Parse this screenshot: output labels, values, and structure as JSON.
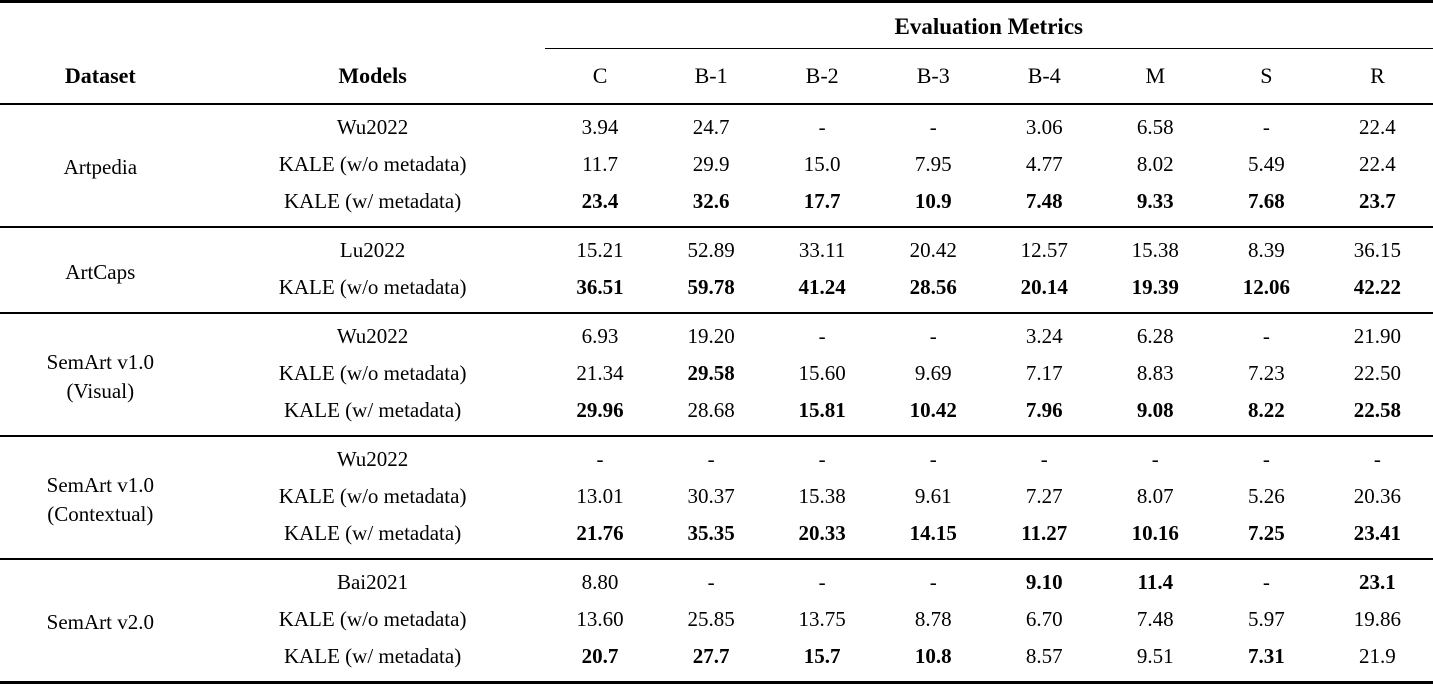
{
  "table": {
    "metrics_group_label": "Evaluation Metrics",
    "columns": {
      "dataset": "Dataset",
      "models": "Models",
      "metrics": [
        "C",
        "B-1",
        "B-2",
        "B-3",
        "B-4",
        "M",
        "S",
        "R"
      ]
    },
    "sections": [
      {
        "dataset": "Artpedia",
        "rows": [
          {
            "model": "Wu2022",
            "values": [
              "3.94",
              "24.7",
              "-",
              "-",
              "3.06",
              "6.58",
              "-",
              "22.4"
            ],
            "bold": [
              false,
              false,
              false,
              false,
              false,
              false,
              false,
              false
            ]
          },
          {
            "model": "KALE (w/o metadata)",
            "values": [
              "11.7",
              "29.9",
              "15.0",
              "7.95",
              "4.77",
              "8.02",
              "5.49",
              "22.4"
            ],
            "bold": [
              false,
              false,
              false,
              false,
              false,
              false,
              false,
              false
            ]
          },
          {
            "model": "KALE (w/ metadata)",
            "values": [
              "23.4",
              "32.6",
              "17.7",
              "10.9",
              "7.48",
              "9.33",
              "7.68",
              "23.7"
            ],
            "bold": [
              true,
              true,
              true,
              true,
              true,
              true,
              true,
              true
            ]
          }
        ]
      },
      {
        "dataset": "ArtCaps",
        "rows": [
          {
            "model": "Lu2022",
            "values": [
              "15.21",
              "52.89",
              "33.11",
              "20.42",
              "12.57",
              "15.38",
              "8.39",
              "36.15"
            ],
            "bold": [
              false,
              false,
              false,
              false,
              false,
              false,
              false,
              false
            ]
          },
          {
            "model": "KALE (w/o metadata)",
            "values": [
              "36.51",
              "59.78",
              "41.24",
              "28.56",
              "20.14",
              "19.39",
              "12.06",
              "42.22"
            ],
            "bold": [
              true,
              true,
              true,
              true,
              true,
              true,
              true,
              true
            ]
          }
        ]
      },
      {
        "dataset": "SemArt v1.0\n(Visual)",
        "rows": [
          {
            "model": "Wu2022",
            "values": [
              "6.93",
              "19.20",
              "-",
              "-",
              "3.24",
              "6.28",
              "-",
              "21.90"
            ],
            "bold": [
              false,
              false,
              false,
              false,
              false,
              false,
              false,
              false
            ]
          },
          {
            "model": "KALE (w/o metadata)",
            "values": [
              "21.34",
              "29.58",
              "15.60",
              "9.69",
              "7.17",
              "8.83",
              "7.23",
              "22.50"
            ],
            "bold": [
              false,
              true,
              false,
              false,
              false,
              false,
              false,
              false
            ]
          },
          {
            "model": "KALE (w/ metadata)",
            "values": [
              "29.96",
              "28.68",
              "15.81",
              "10.42",
              "7.96",
              "9.08",
              "8.22",
              "22.58"
            ],
            "bold": [
              true,
              false,
              true,
              true,
              true,
              true,
              true,
              true
            ]
          }
        ]
      },
      {
        "dataset": "SemArt v1.0\n(Contextual)",
        "rows": [
          {
            "model": "Wu2022",
            "values": [
              "-",
              "-",
              "-",
              "-",
              "-",
              "-",
              "-",
              "-"
            ],
            "bold": [
              false,
              false,
              false,
              false,
              false,
              false,
              false,
              false
            ]
          },
          {
            "model": "KALE (w/o metadata)",
            "values": [
              "13.01",
              "30.37",
              "15.38",
              "9.61",
              "7.27",
              "8.07",
              "5.26",
              "20.36"
            ],
            "bold": [
              false,
              false,
              false,
              false,
              false,
              false,
              false,
              false
            ]
          },
          {
            "model": "KALE (w/ metadata)",
            "values": [
              "21.76",
              "35.35",
              "20.33",
              "14.15",
              "11.27",
              "10.16",
              "7.25",
              "23.41"
            ],
            "bold": [
              true,
              true,
              true,
              true,
              true,
              true,
              true,
              true
            ]
          }
        ]
      },
      {
        "dataset": "SemArt v2.0",
        "rows": [
          {
            "model": "Bai2021",
            "values": [
              "8.80",
              "-",
              "-",
              "-",
              "9.10",
              "11.4",
              "-",
              "23.1"
            ],
            "bold": [
              false,
              false,
              false,
              false,
              true,
              true,
              false,
              true
            ]
          },
          {
            "model": "KALE (w/o metadata)",
            "values": [
              "13.60",
              "25.85",
              "13.75",
              "8.78",
              "6.70",
              "7.48",
              "5.97",
              "19.86"
            ],
            "bold": [
              false,
              false,
              false,
              false,
              false,
              false,
              false,
              false
            ]
          },
          {
            "model": "KALE (w/ metadata)",
            "values": [
              "20.7",
              "27.7",
              "15.7",
              "10.8",
              "8.57",
              "9.51",
              "7.31",
              "21.9"
            ],
            "bold": [
              true,
              true,
              true,
              true,
              false,
              false,
              true,
              false
            ]
          }
        ]
      }
    ]
  }
}
